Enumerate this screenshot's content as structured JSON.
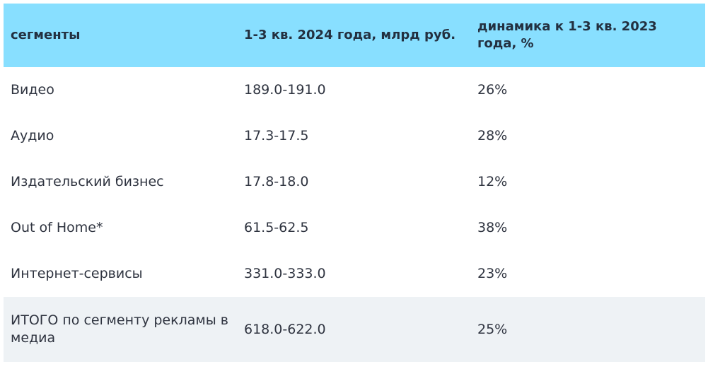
{
  "table": {
    "headers": [
      "сегменты",
      "1-3 кв. 2024 года, млрд руб.",
      "динамика к 1-3 кв. 2023 года, %"
    ],
    "rows": [
      [
        "Видео",
        "189.0-191.0",
        "26%"
      ],
      [
        "Аудио",
        "17.3-17.5",
        "28%"
      ],
      [
        "Издательский бизнес",
        "17.8-18.0",
        "12%"
      ],
      [
        "Out of Home*",
        "61.5-62.5",
        "38%"
      ],
      [
        "Интернет-сервисы",
        "331.0-333.0",
        "23%"
      ]
    ],
    "total": [
      "ИТОГО по сегменту рекламы в медиа",
      "618.0-622.0",
      "25%"
    ],
    "colors": {
      "header_bg": "#88dfff",
      "total_bg": "#eef2f5",
      "text": "#2f3440"
    }
  }
}
